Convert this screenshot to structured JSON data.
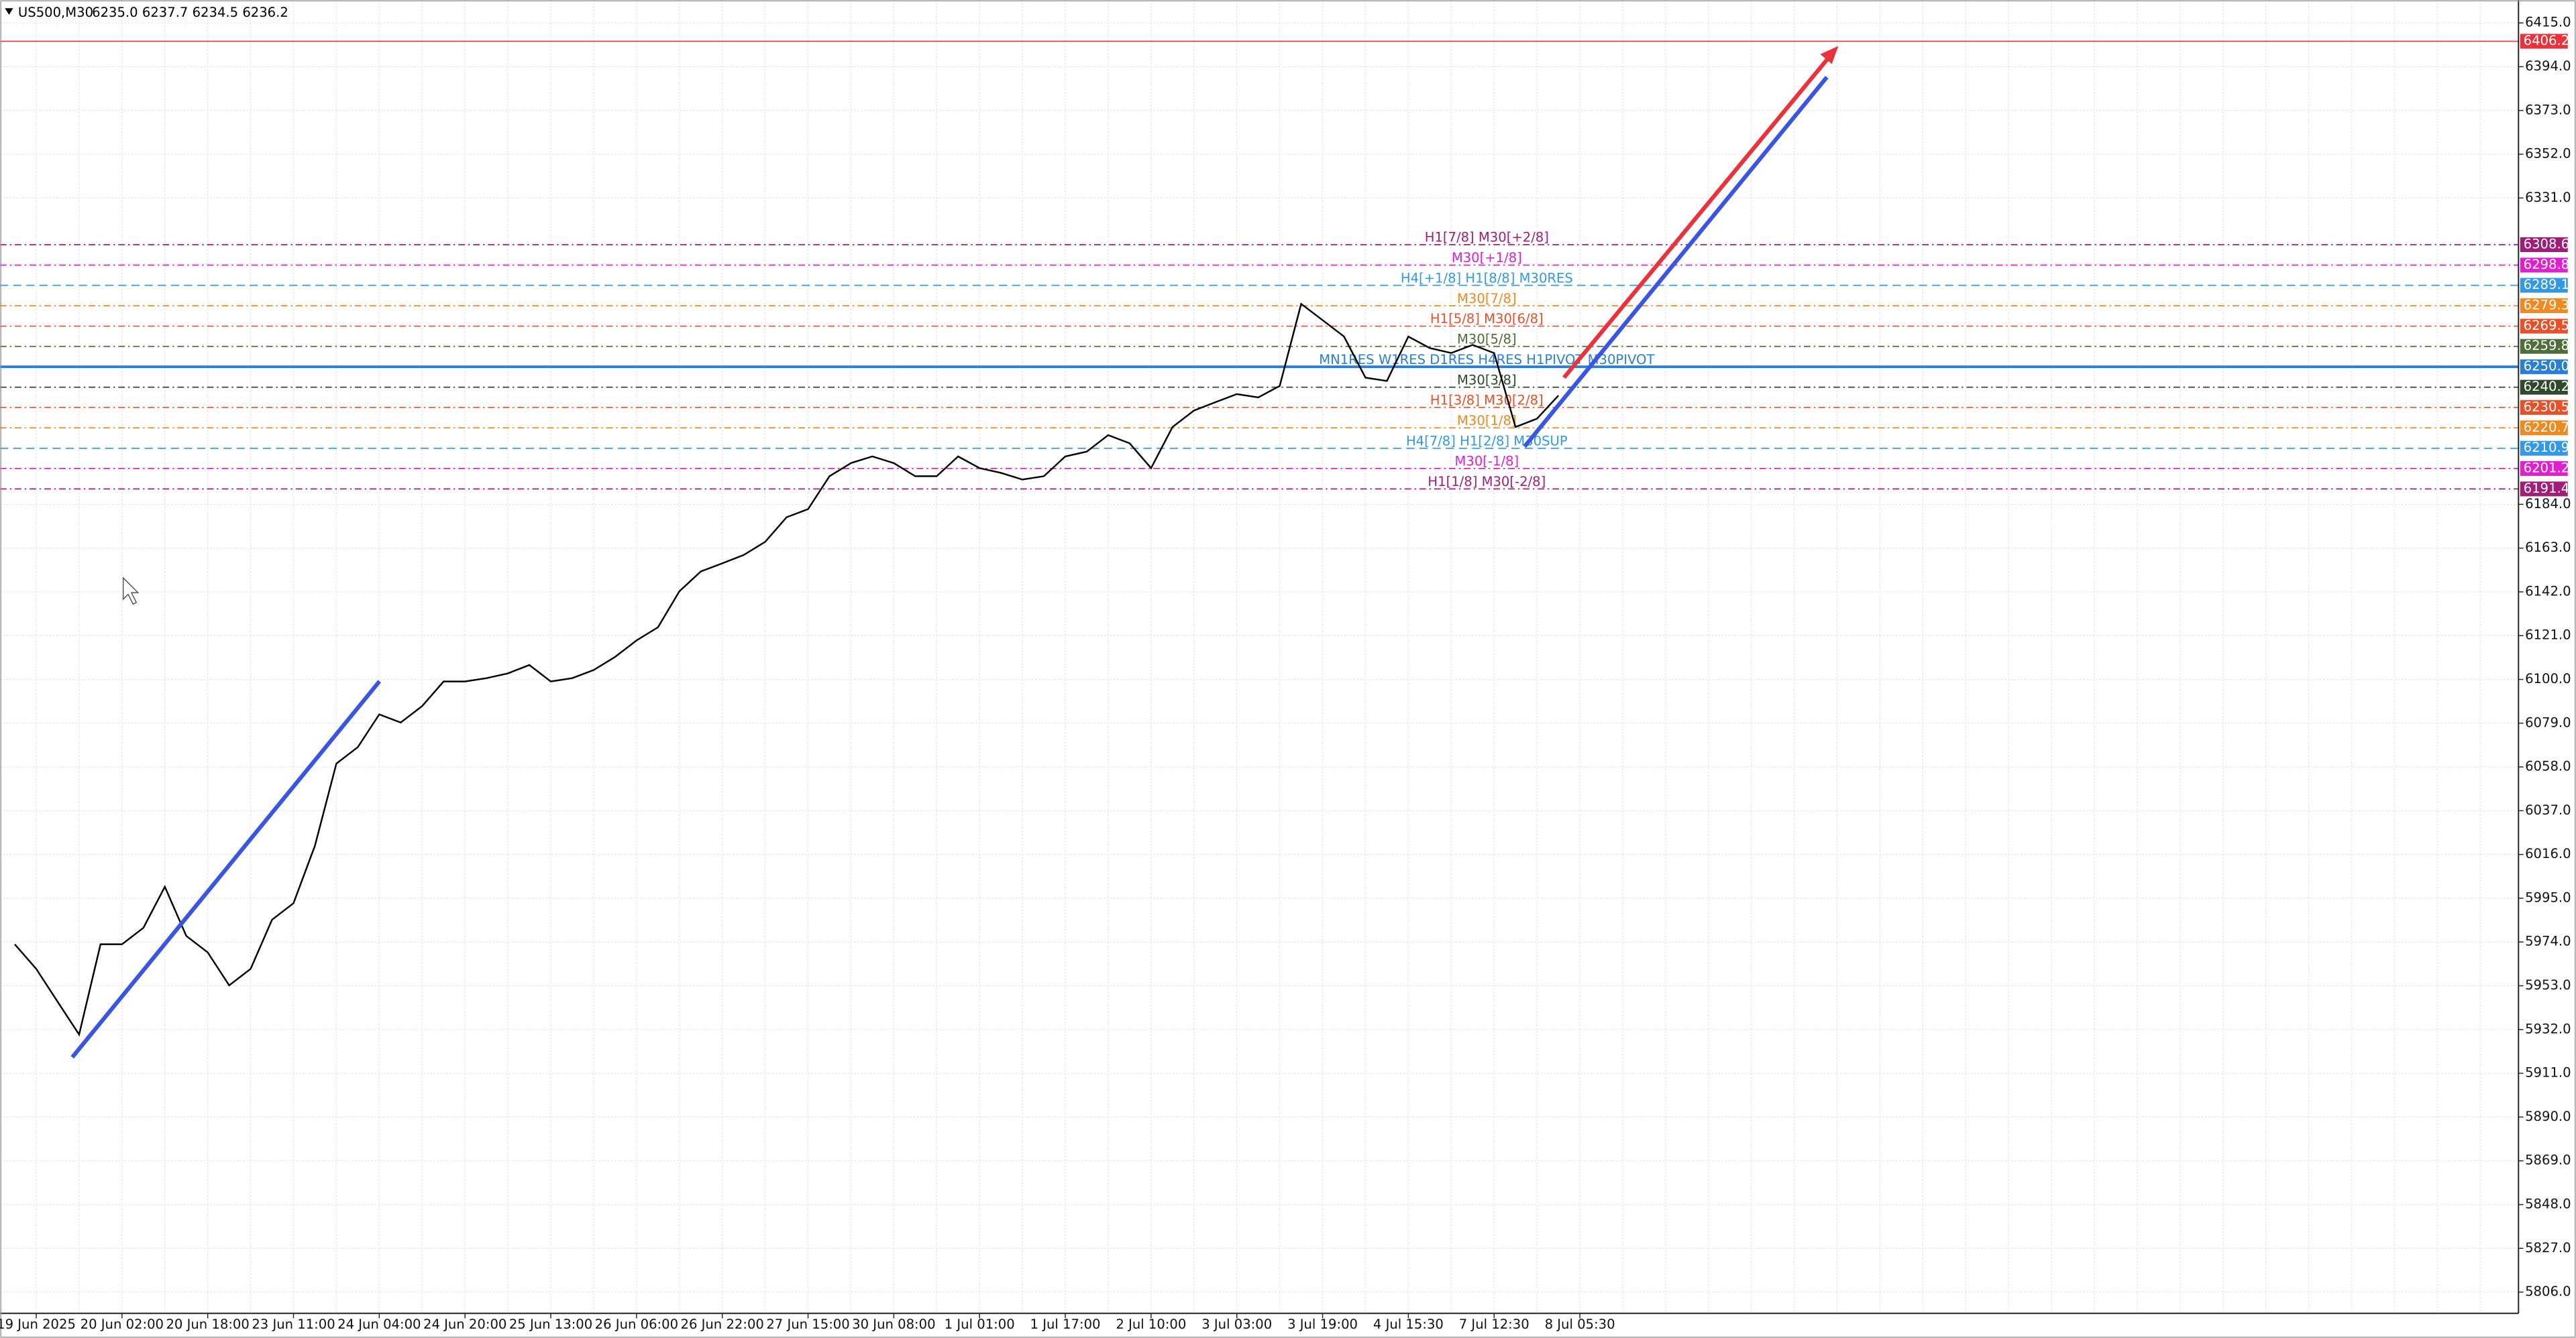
{
  "chart_data": {
    "type": "line",
    "title": "US500,M30",
    "subtitle": "6235.0 6237.7 6234.5 6236.2",
    "color": "#000000",
    "grid": true,
    "categories": [
      null,
      "19 Jun 2025",
      null,
      null,
      null,
      "20 Jun 02:00",
      null,
      null,
      null,
      "20 Jun 18:00",
      null,
      null,
      null,
      "23 Jun 11:00",
      null,
      null,
      null,
      "24 Jun 04:00",
      null,
      null,
      null,
      "24 Jun 20:00",
      null,
      null,
      null,
      "25 Jun 13:00",
      null,
      null,
      null,
      "26 Jun 06:00",
      null,
      null,
      null,
      "26 Jun 22:00",
      null,
      null,
      null,
      "27 Jun 15:00",
      null,
      null,
      null,
      "30 Jun 08:00",
      null,
      null,
      null,
      "1 Jul 01:00",
      null,
      null,
      null,
      "1 Jul 17:00",
      null,
      null,
      null,
      "2 Jul 10:00",
      null,
      null,
      null,
      "3 Jul 03:00",
      null,
      null,
      null,
      "3 Jul 19:00",
      null,
      null,
      null,
      "4 Jul 15:30",
      null,
      null,
      null,
      "7 Jul 12:30",
      null,
      null,
      null,
      "8 Jul 05:30"
    ],
    "values": [
      5972.9,
      5961.1,
      5945.3,
      5929.6,
      5972.9,
      5972.9,
      5980.8,
      6000.5,
      5976.9,
      5969.0,
      5953.2,
      5961.1,
      5984.7,
      5992.6,
      6020.2,
      6059.6,
      6067.5,
      6083.2,
      6079.3,
      6087.2,
      6099.0,
      6099.0,
      6100.6,
      6102.9,
      6106.9,
      6099.0,
      6100.6,
      6104.5,
      6110.8,
      6118.7,
      6125.0,
      6142.3,
      6151.8,
      6155.7,
      6159.7,
      6166.0,
      6177.8,
      6181.7,
      6197.5,
      6203.8,
      6207.0,
      6203.8,
      6197.5,
      6197.5,
      6207.0,
      6201.4,
      6199.1,
      6195.9,
      6197.5,
      6207.0,
      6209.3,
      6217.2,
      6213.3,
      6201.4,
      6221.1,
      6229.0,
      6233.0,
      6236.9,
      6235.3,
      6240.8,
      6280.2,
      6272.4,
      6264.5,
      6244.8,
      6243.2,
      6264.5,
      6259.0,
      6256.6,
      6260.5,
      6256.6,
      6221.1,
      6225.1,
      6236.2,
      null
    ],
    "ylim": [
      5795.8,
      6426.0
    ],
    "yticks": [
      {
        "value": 6415,
        "label": "6415.0"
      },
      {
        "value": 6394,
        "label": "6394.0"
      },
      {
        "value": 6373,
        "label": "6373.0"
      },
      {
        "value": 6352,
        "label": "6352.0"
      },
      {
        "value": 6331,
        "label": "6331.0"
      },
      {
        "value": 6184,
        "label": "6184.0"
      },
      {
        "value": 6163,
        "label": "6163.0"
      },
      {
        "value": 6142,
        "label": "6142.0"
      },
      {
        "value": 6121,
        "label": "6121.0"
      },
      {
        "value": 6100,
        "label": "6100.0"
      },
      {
        "value": 6079,
        "label": "6079.0"
      },
      {
        "value": 6058,
        "label": "6058.0"
      },
      {
        "value": 6037,
        "label": "6037.0"
      },
      {
        "value": 6016,
        "label": "6016.0"
      },
      {
        "value": 5995,
        "label": "5995.0"
      },
      {
        "value": 5974,
        "label": "5974.0"
      },
      {
        "value": 5953,
        "label": "5953.0"
      },
      {
        "value": 5932,
        "label": "5932.0"
      },
      {
        "value": 5911,
        "label": "5911.0"
      },
      {
        "value": 5890,
        "label": "5890.0"
      },
      {
        "value": 5869,
        "label": "5869.0"
      },
      {
        "value": 5848,
        "label": "5848.0"
      },
      {
        "value": 5827,
        "label": "5827.0"
      },
      {
        "value": 5806,
        "label": "5806.0"
      }
    ],
    "levels": [
      {
        "value": 6406.2,
        "label": "6406.2",
        "color": "#e8323c",
        "style": "solid"
      },
      {
        "name": "H1[7/8] M30[+2/8]",
        "value": 6308.6,
        "label": "6308.6",
        "color": "#a01e78",
        "style": "dashdot"
      },
      {
        "name": "M30[+1/8]",
        "value": 6298.8,
        "label": "6298.8",
        "color": "#e020d0",
        "style": "dashdot"
      },
      {
        "name": "H4[+1/8] H1[8/8] M30RES",
        "value": 6289.1,
        "label": "6289.1",
        "color": "#3399e6",
        "style": "dash"
      },
      {
        "name": "M30[7/8]",
        "value": 6279.3,
        "label": "6279.3",
        "color": "#f08a20",
        "style": "dashdot"
      },
      {
        "name": "H1[5/8] M30[6/8]",
        "value": 6269.5,
        "label": "6269.5",
        "color": "#e8502a",
        "style": "dashdot"
      },
      {
        "name": "M30[5/8]",
        "value": 6259.8,
        "label": "6259.8",
        "color": "#4e6e3a",
        "style": "dashdot"
      },
      {
        "name": "MN1RES W1RES D1RES H4RES H1PIVOT M30PIVOT",
        "value": 6250.0,
        "label": "6250.0",
        "color": "#2a7fd4",
        "style": "solid"
      },
      {
        "name": "M30[3/8]",
        "value": 6240.2,
        "label": "6240.2",
        "color": "#2e4a2a",
        "style": "dashdot"
      },
      {
        "name": "H1[3/8] M30[2/8]",
        "value": 6230.5,
        "label": "6230.5",
        "color": "#e8502a",
        "style": "dashdot"
      },
      {
        "name": "M30[1/8]",
        "value": 6220.7,
        "label": "6220.7",
        "color": "#f08a20",
        "style": "dashdot"
      },
      {
        "name": "H4[7/8] H1[2/8] M30SUP",
        "value": 6210.9,
        "label": "6210.9",
        "color": "#3399e6",
        "style": "dash"
      },
      {
        "name": "M30[-1/8]",
        "value": 6201.2,
        "label": "6201.2",
        "color": "#e020d0",
        "style": "dashdot"
      },
      {
        "name": "H1[1/8] M30[-2/8]",
        "value": 6191.4,
        "label": "6191.4",
        "color": "#a01e78",
        "style": "dashdot"
      }
    ]
  }
}
